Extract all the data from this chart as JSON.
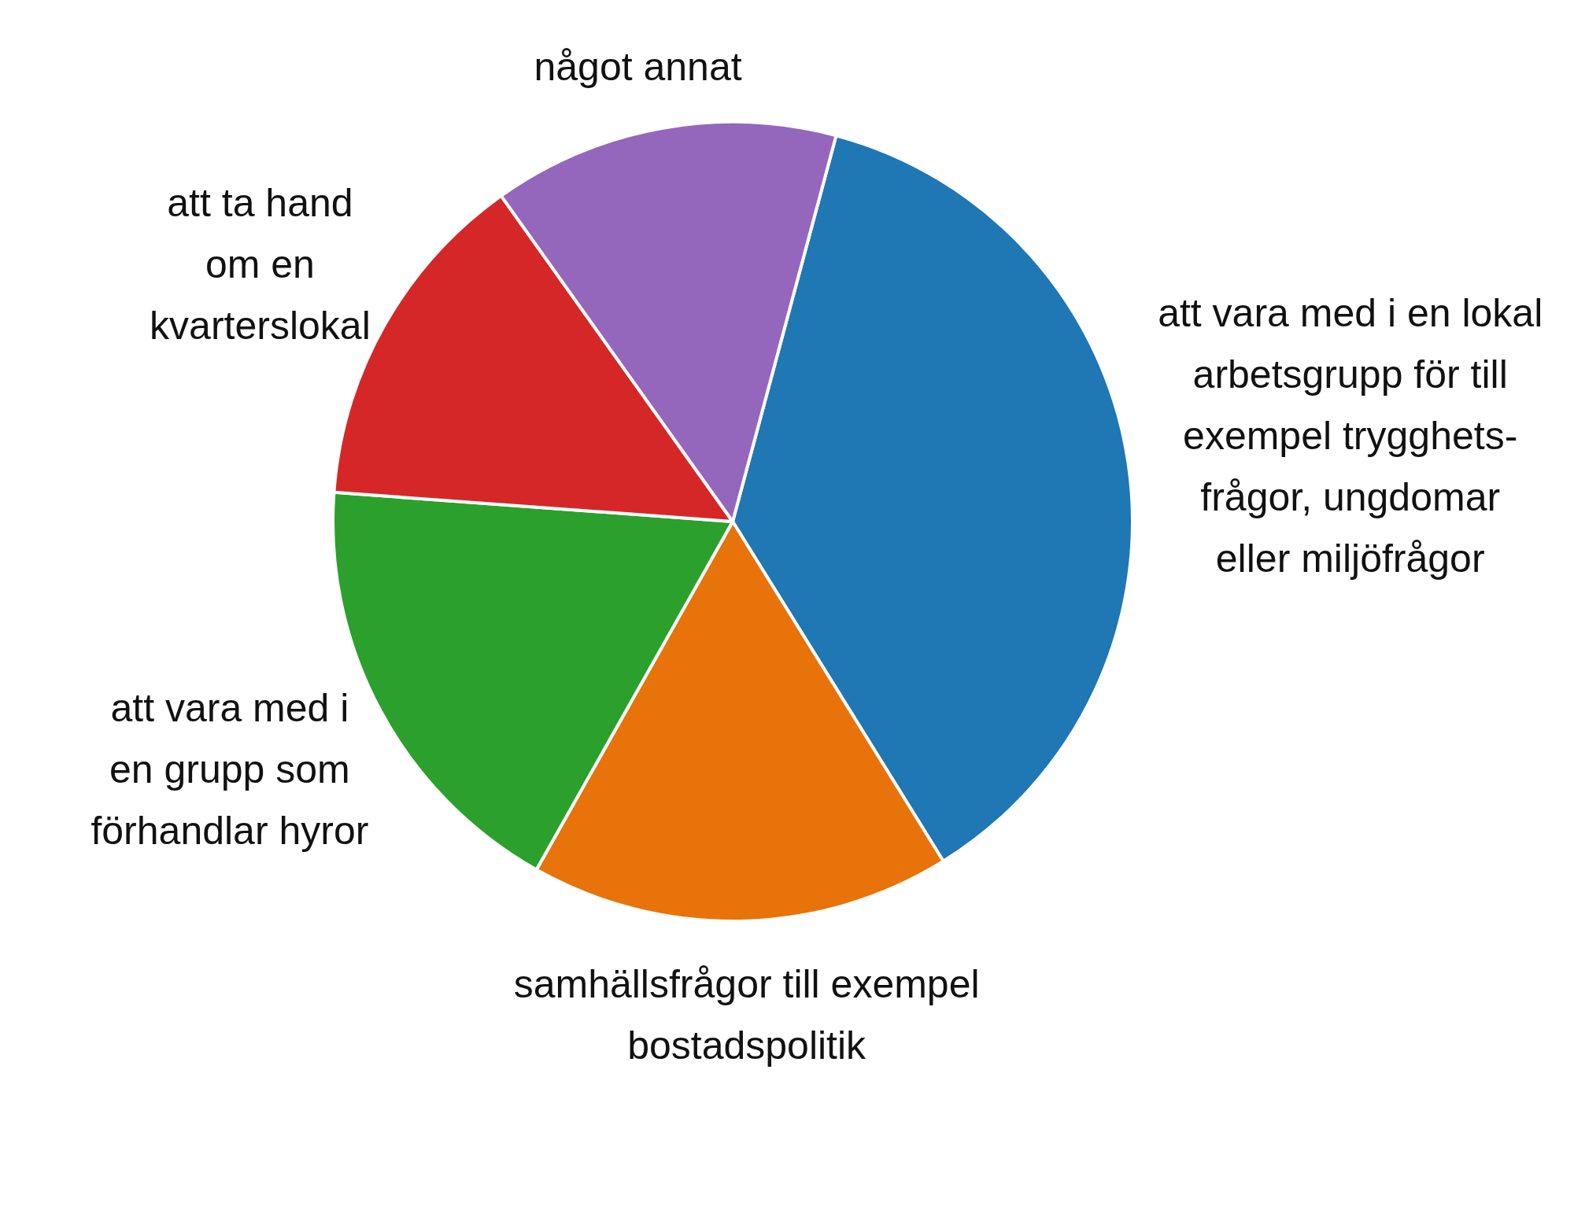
{
  "chart_data": {
    "type": "pie",
    "categories": [
      "att vara med i en lokal\narbetsgrupp för till\nexempel trygghets-\nfrågor, ungdomar\neller miljöfrågor",
      "samhällsfrågor till exempel\nbostadspolitik",
      "att vara med i\nen grupp som\nförhandlar hyror",
      "att ta hand\nom en\nkvarterslokal",
      "något annat"
    ],
    "values": [
      37,
      17,
      18,
      14,
      14
    ],
    "colors": [
      "#1f77b4",
      "#e8730a",
      "#2ca02c",
      "#d62728",
      "#9467bd"
    ]
  }
}
